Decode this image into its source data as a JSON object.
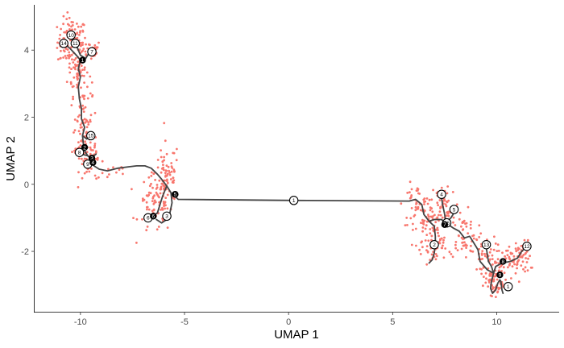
{
  "chart_data": {
    "type": "scatter",
    "title": "",
    "xlabel": "UMAP 1",
    "ylabel": "UMAP 2",
    "xlim": [
      -12.2,
      13.0
    ],
    "ylim": [
      -3.8,
      5.35
    ],
    "xticks": [
      -10,
      -5,
      0,
      5,
      10
    ],
    "yticks": [
      -2,
      0,
      2,
      4
    ],
    "grid": false,
    "legend": "none",
    "point_color": "#F8766D",
    "trajectory_color": "#444444",
    "clusters": [
      {
        "center": [
          -10.4,
          4.25
        ],
        "spread": [
          0.35,
          0.35
        ],
        "count": 120
      },
      {
        "center": [
          -9.5,
          4.0
        ],
        "spread": [
          0.25,
          0.15
        ],
        "count": 25
      },
      {
        "center": [
          -10.1,
          3.35
        ],
        "spread": [
          0.25,
          0.35
        ],
        "count": 60
      },
      {
        "center": [
          -9.85,
          2.25
        ],
        "spread": [
          0.2,
          0.45
        ],
        "count": 40
      },
      {
        "center": [
          -9.8,
          1.1
        ],
        "spread": [
          0.3,
          0.35
        ],
        "count": 70
      },
      {
        "center": [
          -9.3,
          0.65
        ],
        "spread": [
          0.2,
          0.15
        ],
        "count": 15
      },
      {
        "center": [
          -8.5,
          0.35
        ],
        "spread": [
          0.5,
          0.15
        ],
        "count": 12
      },
      {
        "center": [
          -5.85,
          0.35
        ],
        "spread": [
          0.3,
          0.45
        ],
        "count": 55
      },
      {
        "center": [
          -6.4,
          -0.6
        ],
        "spread": [
          0.4,
          0.45
        ],
        "count": 70
      },
      {
        "center": [
          -5.95,
          -0.2
        ],
        "spread": [
          0.3,
          0.3
        ],
        "count": 30
      },
      {
        "center": [
          6.1,
          -0.6
        ],
        "spread": [
          0.3,
          0.3
        ],
        "count": 40
      },
      {
        "center": [
          6.7,
          -1.2
        ],
        "spread": [
          0.35,
          0.45
        ],
        "count": 70
      },
      {
        "center": [
          7.5,
          -0.6
        ],
        "spread": [
          0.35,
          0.4
        ],
        "count": 55
      },
      {
        "center": [
          7.0,
          -1.9
        ],
        "spread": [
          0.3,
          0.3
        ],
        "count": 40
      },
      {
        "center": [
          8.4,
          -1.5
        ],
        "spread": [
          0.35,
          0.35
        ],
        "count": 55
      },
      {
        "center": [
          9.4,
          -2.1
        ],
        "spread": [
          0.3,
          0.3
        ],
        "count": 40
      },
      {
        "center": [
          9.85,
          -2.65
        ],
        "spread": [
          0.3,
          0.3
        ],
        "count": 50
      },
      {
        "center": [
          9.9,
          -3.05
        ],
        "spread": [
          0.25,
          0.2
        ],
        "count": 35
      },
      {
        "center": [
          10.9,
          -2.25
        ],
        "spread": [
          0.35,
          0.25
        ],
        "count": 55
      },
      {
        "center": [
          11.3,
          -2.0
        ],
        "spread": [
          0.2,
          0.2
        ],
        "count": 25
      }
    ],
    "trajectory": [
      [
        [
          -9.55,
          3.95
        ],
        [
          -9.75,
          3.75
        ],
        [
          -10.0,
          3.7
        ],
        [
          -10.1,
          3.45
        ],
        [
          -10.0,
          3.2
        ],
        [
          -10.1,
          2.9
        ],
        [
          -10.05,
          2.55
        ],
        [
          -9.95,
          2.25
        ],
        [
          -9.95,
          1.95
        ],
        [
          -9.8,
          1.7
        ],
        [
          -9.9,
          1.45
        ],
        [
          -9.85,
          1.15
        ],
        [
          -9.95,
          0.9
        ],
        [
          -9.65,
          0.85
        ],
        [
          -9.45,
          0.75
        ],
        [
          -9.35,
          0.55
        ],
        [
          -9.1,
          0.45
        ],
        [
          -8.7,
          0.4
        ],
        [
          -8.2,
          0.48
        ],
        [
          -7.7,
          0.52
        ],
        [
          -7.3,
          0.55
        ],
        [
          -6.9,
          0.55
        ],
        [
          -6.6,
          0.48
        ],
        [
          -6.3,
          0.3
        ],
        [
          -6.1,
          0.15
        ],
        [
          -5.85,
          -0.05
        ],
        [
          -5.65,
          -0.25
        ],
        [
          -5.3,
          -0.45
        ],
        [
          0.25,
          -0.48
        ],
        [
          5.8,
          -0.5
        ],
        [
          6.1,
          -0.45
        ],
        [
          6.4,
          -0.6
        ],
        [
          6.5,
          -0.9
        ],
        [
          6.75,
          -1.1
        ],
        [
          7.0,
          -1.05
        ],
        [
          7.35,
          -1.05
        ],
        [
          7.55,
          -1.15
        ],
        [
          7.9,
          -1.3
        ],
        [
          8.2,
          -1.4
        ],
        [
          8.45,
          -1.6
        ],
        [
          8.7,
          -1.55
        ],
        [
          8.9,
          -1.75
        ],
        [
          9.1,
          -1.95
        ],
        [
          9.2,
          -2.3
        ],
        [
          9.55,
          -2.55
        ],
        [
          9.85,
          -2.65
        ],
        [
          9.95,
          -2.45
        ],
        [
          10.25,
          -2.35
        ],
        [
          10.65,
          -2.3
        ],
        [
          11.0,
          -2.2
        ],
        [
          11.2,
          -2.0
        ],
        [
          11.45,
          -1.85
        ]
      ],
      [
        [
          -10.45,
          4.35
        ],
        [
          -10.2,
          4.15
        ],
        [
          -10.0,
          3.85
        ],
        [
          -9.75,
          3.75
        ]
      ],
      [
        [
          -10.8,
          4.2
        ],
        [
          -10.5,
          4.05
        ],
        [
          -10.2,
          3.85
        ],
        [
          -10.0,
          3.7
        ]
      ],
      [
        [
          -9.9,
          1.45
        ],
        [
          -9.7,
          1.35
        ],
        [
          -9.5,
          1.45
        ]
      ],
      [
        [
          -10.05,
          0.95
        ],
        [
          -9.85,
          1.05
        ],
        [
          -9.65,
          0.85
        ]
      ],
      [
        [
          -9.55,
          0.75
        ],
        [
          -9.4,
          0.82
        ],
        [
          -9.25,
          0.9
        ]
      ],
      [
        [
          -5.65,
          -0.25
        ],
        [
          -5.6,
          -0.55
        ],
        [
          -5.7,
          -0.85
        ],
        [
          -5.85,
          -1.05
        ],
        [
          -6.1,
          -1.15
        ],
        [
          -6.35,
          -1.05
        ]
      ],
      [
        [
          -5.85,
          -0.05
        ],
        [
          -6.05,
          -0.35
        ],
        [
          -6.2,
          -0.65
        ],
        [
          -6.3,
          -0.85
        ],
        [
          -6.5,
          -0.95
        ],
        [
          -6.8,
          -1.0
        ]
      ],
      [
        [
          6.75,
          -1.1
        ],
        [
          7.0,
          -1.25
        ],
        [
          7.05,
          -1.55
        ],
        [
          7.05,
          -1.8
        ],
        [
          7.0,
          -2.05
        ],
        [
          6.9,
          -2.25
        ],
        [
          6.75,
          -2.35
        ]
      ],
      [
        [
          7.55,
          -1.15
        ],
        [
          7.5,
          -0.9
        ],
        [
          7.4,
          -0.6
        ],
        [
          7.35,
          -0.4
        ],
        [
          7.3,
          -0.3
        ]
      ],
      [
        [
          7.55,
          -1.15
        ],
        [
          7.8,
          -1.0
        ],
        [
          8.0,
          -0.8
        ]
      ],
      [
        [
          9.85,
          -2.65
        ],
        [
          9.75,
          -2.9
        ],
        [
          9.7,
          -3.1
        ],
        [
          9.8,
          -3.25
        ],
        [
          9.95,
          -3.15
        ],
        [
          10.05,
          -2.95
        ],
        [
          10.15,
          -2.85
        ],
        [
          10.2,
          -2.9
        ],
        [
          10.25,
          -3.15
        ],
        [
          10.3,
          -3.25
        ]
      ],
      [
        [
          9.85,
          -2.65
        ],
        [
          9.75,
          -2.45
        ],
        [
          9.6,
          -2.3
        ],
        [
          9.55,
          -2.1
        ],
        [
          9.5,
          -1.9
        ]
      ]
    ],
    "nodes": [
      {
        "label": "1",
        "x": 0.25,
        "y": -0.48,
        "type": "root"
      },
      {
        "label": "1",
        "x": 10.55,
        "y": -3.05,
        "type": "root"
      },
      {
        "label": "2",
        "x": 7.0,
        "y": -1.8,
        "type": "root"
      },
      {
        "label": "3",
        "x": -5.85,
        "y": -0.95,
        "type": "root"
      },
      {
        "label": "4",
        "x": 7.35,
        "y": -0.3,
        "type": "root"
      },
      {
        "label": "5",
        "x": 7.95,
        "y": -0.75,
        "type": "root"
      },
      {
        "label": "6",
        "x": -6.75,
        "y": -1.0,
        "type": "root"
      },
      {
        "label": "7",
        "x": -9.45,
        "y": 3.95,
        "type": "root"
      },
      {
        "label": "8",
        "x": -10.05,
        "y": 0.95,
        "type": "root"
      },
      {
        "label": "9",
        "x": -9.65,
        "y": 0.6,
        "type": "root"
      },
      {
        "label": "10",
        "x": -10.45,
        "y": 4.45,
        "type": "root"
      },
      {
        "label": "11",
        "x": -10.25,
        "y": 4.2,
        "type": "root"
      },
      {
        "label": "12",
        "x": 11.45,
        "y": -1.85,
        "type": "root"
      },
      {
        "label": "13",
        "x": 9.5,
        "y": -1.8,
        "type": "root"
      },
      {
        "label": "14",
        "x": -10.8,
        "y": 4.2,
        "type": "root"
      },
      {
        "label": "15",
        "x": -9.5,
        "y": 1.45,
        "type": "root"
      },
      {
        "label": "16",
        "x": 7.6,
        "y": -1.15,
        "type": "root"
      },
      {
        "label": "1",
        "x": -9.9,
        "y": 3.7,
        "type": "branch"
      },
      {
        "label": "2",
        "x": -9.8,
        "y": 1.1,
        "type": "branch"
      },
      {
        "label": "3",
        "x": -9.45,
        "y": 0.78,
        "type": "branch"
      },
      {
        "label": "4",
        "x": -9.4,
        "y": 0.65,
        "type": "branch"
      },
      {
        "label": "5",
        "x": -5.45,
        "y": -0.3,
        "type": "branch"
      },
      {
        "label": "6",
        "x": -6.5,
        "y": -0.95,
        "type": "branch"
      },
      {
        "label": "7",
        "x": 7.5,
        "y": -1.2,
        "type": "branch"
      },
      {
        "label": "8",
        "x": 10.3,
        "y": -2.3,
        "type": "branch"
      },
      {
        "label": "9",
        "x": 10.15,
        "y": -2.7,
        "type": "branch"
      }
    ]
  }
}
